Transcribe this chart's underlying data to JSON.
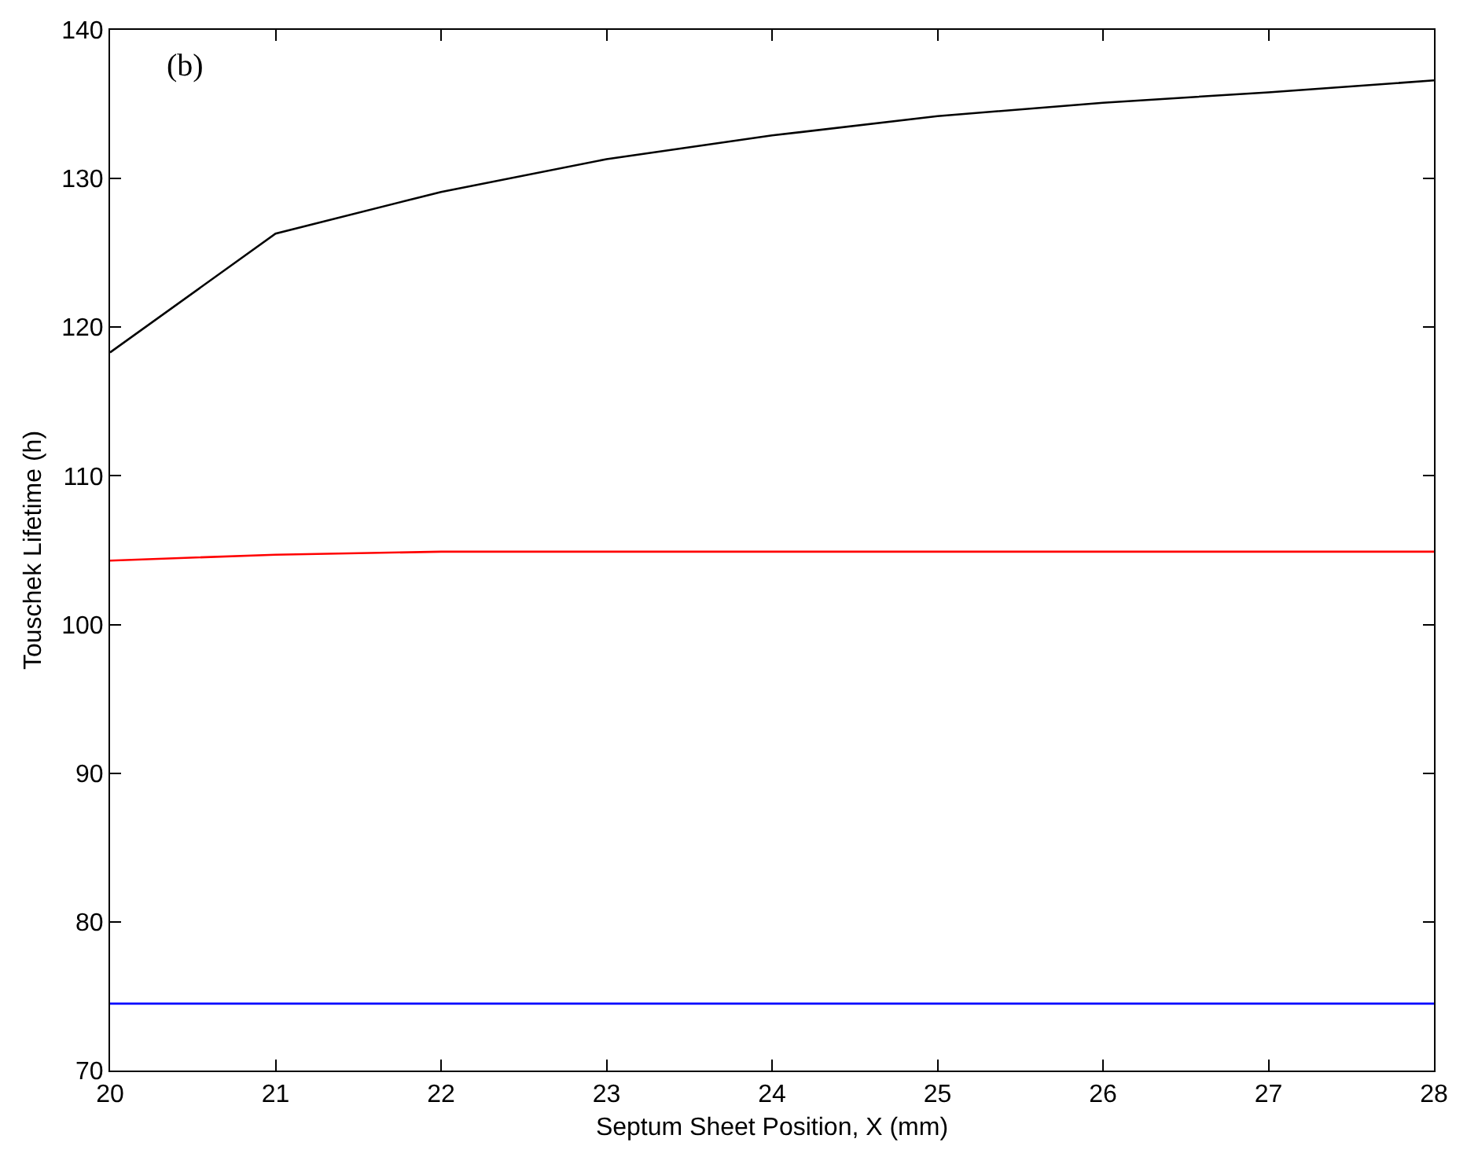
{
  "chart_data": {
    "type": "line",
    "xlabel": "Septum Sheet Position, X (mm)",
    "ylabel": "Touschek Lifetime (h)",
    "x": [
      20,
      21,
      22,
      23,
      24,
      25,
      26,
      27,
      28
    ],
    "series": [
      {
        "color": "#000000",
        "values": [
          118.3,
          126.3,
          129.1,
          131.3,
          132.9,
          134.2,
          135.1,
          135.8,
          136.6
        ]
      },
      {
        "color": "#ff0000",
        "values": [
          104.3,
          104.7,
          104.9,
          104.9,
          104.9,
          104.9,
          104.9,
          104.9,
          104.9
        ]
      },
      {
        "color": "#0000ff",
        "values": [
          74.5,
          74.5,
          74.5,
          74.5,
          74.5,
          74.5,
          74.5,
          74.5,
          74.5
        ]
      }
    ],
    "annotations": [
      "(b)"
    ],
    "xlim": [
      20,
      28
    ],
    "xticks": [
      20,
      21,
      22,
      23,
      24,
      25,
      26,
      27,
      28
    ],
    "ylim": [
      70,
      140
    ],
    "yticks": [
      70,
      80,
      90,
      100,
      110,
      120,
      130,
      140
    ],
    "marker": "none",
    "line_style": "solid"
  }
}
